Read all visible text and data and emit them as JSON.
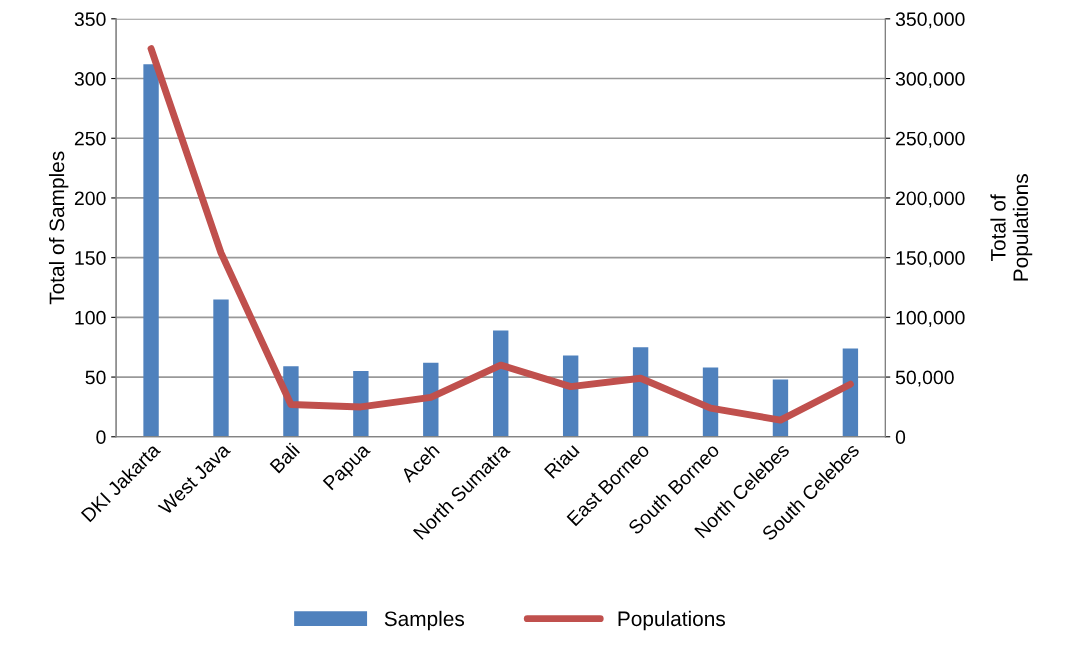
{
  "chart_data": {
    "type": "bar",
    "categories": [
      "DKI Jakarta",
      "West Java",
      "Bali",
      "Papua",
      "Aceh",
      "North Sumatra",
      "Riau",
      "East Borneo",
      "South Borneo",
      "North Celebes",
      "South Celebes"
    ],
    "series": [
      {
        "name": "Samples",
        "color": "#4f81bd",
        "values": [
          312,
          115,
          59,
          55,
          62,
          89,
          68,
          75,
          58,
          48,
          74
        ]
      },
      {
        "name": "Populations",
        "type": "line",
        "axis": "y2",
        "color": "#c0504d",
        "values": [
          325000,
          154000,
          27000,
          25000,
          33000,
          60000,
          42000,
          49000,
          24000,
          14000,
          44000
        ]
      }
    ],
    "ylabel": "Total of Samples",
    "y2label": "Total of\nPopulations",
    "ylim": [
      0,
      350
    ],
    "yticks": [
      0,
      50,
      100,
      150,
      200,
      250,
      300,
      350
    ],
    "y2lim": [
      0,
      350000
    ],
    "y2ticks": [
      {
        "value": 0,
        "label": "0"
      },
      {
        "value": 50000,
        "label": "50,000"
      },
      {
        "value": 100000,
        "label": "100,000"
      },
      {
        "value": 150000,
        "label": "150,000"
      },
      {
        "value": 200000,
        "label": "200,000"
      },
      {
        "value": 250000,
        "label": "250,000"
      },
      {
        "value": 300000,
        "label": "300,000"
      },
      {
        "value": 350000,
        "label": "350,000"
      }
    ],
    "grid": "y",
    "legend": "bottom",
    "marker": "none",
    "line_style": "solid"
  }
}
